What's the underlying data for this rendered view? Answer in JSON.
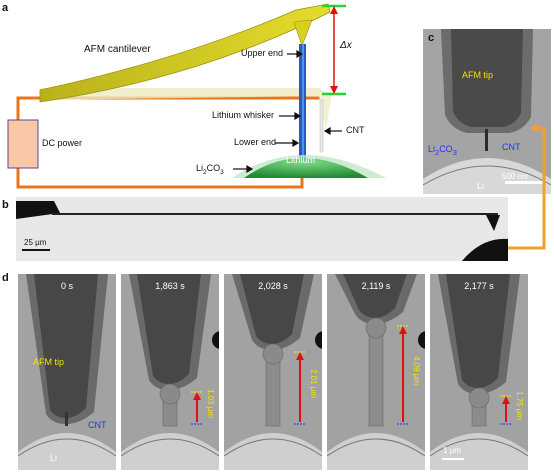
{
  "panels": {
    "a": {
      "label": "a",
      "afm_cantilever": "AFM cantilever",
      "dc_power": "DC power",
      "upper_end": "Upper end",
      "lithium_whisker": "Lithium whisker",
      "lower_end": "Lower end",
      "cnt": "CNT",
      "li2co3_main": "Li",
      "li2co3_sub": "2",
      "li2co3_tail": "CO",
      "li2co3_sub2": "3",
      "lithium": "Lithium",
      "delta_x": "Δx"
    },
    "b": {
      "label": "b",
      "scale": "25 μm"
    },
    "c": {
      "label": "c",
      "afm_tip": "AFM tip",
      "li2co3_main": "Li",
      "li2co3_sub": "2",
      "li2co3_tail": "CO",
      "li2co3_sub2": "3",
      "cnt": "CNT",
      "li": "Li",
      "scale": "500 nm"
    },
    "d": {
      "label": "d",
      "frames": [
        {
          "time": "0 s",
          "length": ""
        },
        {
          "time": "1,863 s",
          "length": "1.03 μm"
        },
        {
          "time": "2,028 s",
          "length": "2.01 μm"
        },
        {
          "time": "2,119 s",
          "length": "4.09 μm"
        },
        {
          "time": "2,177 s",
          "length": "1.75 μm"
        }
      ],
      "afm_tip": "AFM tip",
      "cnt": "CNT",
      "li": "Li",
      "scale": "1 μm"
    }
  },
  "colors": {
    "cantilever": "#c9c21a",
    "whisker": "#1f5fbf",
    "lithium": "#2e9e3c",
    "wire": "#e8761c",
    "power": "#f7c7a8",
    "arrow_red": "#e01010",
    "marker_green": "#2bd13c",
    "marker_yellow": "#f2e600"
  }
}
